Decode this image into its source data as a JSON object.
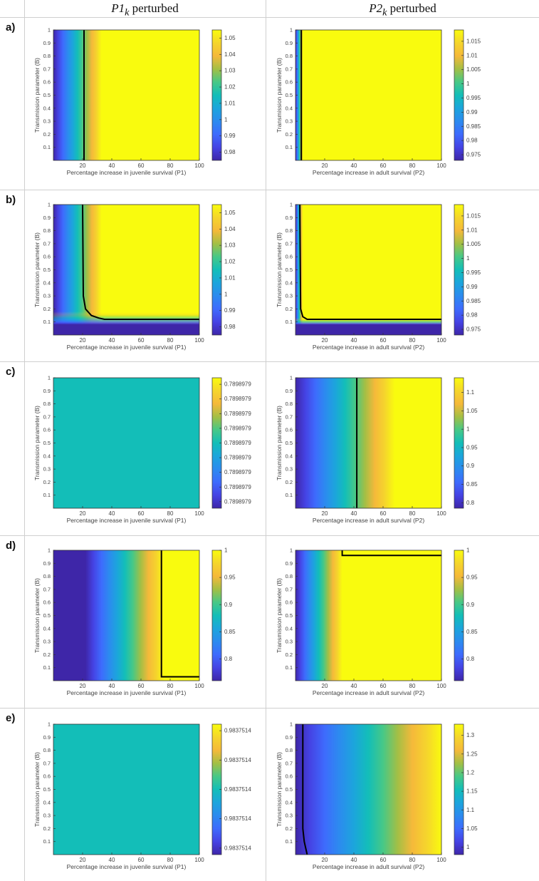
{
  "headers": {
    "col1": {
      "var": "P1",
      "sub": "k",
      "rest": " perturbed"
    },
    "col2": {
      "var": "P2",
      "sub": "k",
      "rest": " perturbed"
    }
  },
  "row_labels": [
    "a)",
    "b)",
    "c)",
    "d)",
    "e)"
  ],
  "colors": {
    "low": "#3e26a8",
    "mid": "#13beb8",
    "high": "#f9fb0e",
    "grid": "#cfcfcf"
  },
  "chart_data": [
    {
      "id": "a1",
      "type": "heatmap",
      "row": 0,
      "col": 0,
      "xlabel": "Percentage increase in juvenile survival (P1)",
      "ylabel": "Transmission parameter (B)",
      "xlim": [
        0,
        100
      ],
      "ylim": [
        0,
        1
      ],
      "xticks": [
        20,
        40,
        60,
        80,
        100
      ],
      "yticks": [
        0.1,
        0.2,
        0.3,
        0.4,
        0.5,
        0.6,
        0.7,
        0.8,
        0.9,
        1
      ],
      "colorbar": {
        "min": 0.975,
        "max": 1.055,
        "ticks": [
          "0.98",
          "0.99",
          "1",
          "1.01",
          "1.02",
          "1.03",
          "1.04",
          "1.05"
        ],
        "values": [
          0.98,
          0.99,
          1,
          1.01,
          1.02,
          1.03,
          1.04,
          1.05
        ]
      },
      "field": {
        "kind": "x_ramp",
        "start": 0,
        "end": 33
      },
      "contour": [
        [
          21,
          0
        ],
        [
          21,
          1
        ]
      ]
    },
    {
      "id": "a2",
      "type": "heatmap",
      "row": 0,
      "col": 1,
      "xlabel": "Percentage increase in adult survival (P2)",
      "ylabel": "Transmission parameter (B)",
      "xlim": [
        0,
        100
      ],
      "ylim": [
        0,
        1
      ],
      "xticks": [
        20,
        40,
        60,
        80,
        100
      ],
      "yticks": [
        0.1,
        0.2,
        0.3,
        0.4,
        0.5,
        0.6,
        0.7,
        0.8,
        0.9,
        1
      ],
      "colorbar": {
        "min": 0.973,
        "max": 1.019,
        "ticks": [
          "0.975",
          "0.98",
          "0.985",
          "0.99",
          "0.995",
          "1",
          "1.005",
          "1.01",
          "1.015"
        ],
        "values": [
          0.975,
          0.98,
          0.985,
          0.99,
          0.995,
          1,
          1.005,
          1.01,
          1.015
        ]
      },
      "field": {
        "kind": "x_ramp",
        "start": 0,
        "end": 5
      },
      "contour": [
        [
          4,
          0
        ],
        [
          4,
          1
        ]
      ]
    },
    {
      "id": "b1",
      "type": "heatmap",
      "row": 1,
      "col": 0,
      "xlabel": "Percentage increase in juvenile survival (P1)",
      "ylabel": "Transmission parameter (B)",
      "xlim": [
        0,
        100
      ],
      "ylim": [
        0,
        1
      ],
      "xticks": [
        20,
        40,
        60,
        80,
        100
      ],
      "yticks": [
        0.1,
        0.2,
        0.3,
        0.4,
        0.5,
        0.6,
        0.7,
        0.8,
        0.9,
        1
      ],
      "colorbar": {
        "min": 0.975,
        "max": 1.055,
        "ticks": [
          "0.98",
          "0.99",
          "1",
          "1.01",
          "1.02",
          "1.03",
          "1.04",
          "1.05"
        ],
        "values": [
          0.98,
          0.99,
          1,
          1.01,
          1.02,
          1.03,
          1.04,
          1.05
        ]
      },
      "field": {
        "kind": "corner",
        "xstart": 0,
        "xend": 33,
        "ystart": 0.08,
        "yend": 0.18
      },
      "contour": [
        [
          20,
          1
        ],
        [
          20.5,
          0.3
        ],
        [
          22,
          0.2
        ],
        [
          26,
          0.15
        ],
        [
          31,
          0.13
        ],
        [
          35,
          0.12
        ],
        [
          100,
          0.12
        ]
      ]
    },
    {
      "id": "b2",
      "type": "heatmap",
      "row": 1,
      "col": 1,
      "xlabel": "Percentage increase in adult survival (P2)",
      "ylabel": "Transmission parameter (B)",
      "xlim": [
        0,
        100
      ],
      "ylim": [
        0,
        1
      ],
      "xticks": [
        20,
        40,
        60,
        80,
        100
      ],
      "yticks": [
        0.1,
        0.2,
        0.3,
        0.4,
        0.5,
        0.6,
        0.7,
        0.8,
        0.9,
        1
      ],
      "colorbar": {
        "min": 0.973,
        "max": 1.019,
        "ticks": [
          "0.975",
          "0.98",
          "0.985",
          "0.99",
          "0.995",
          "1",
          "1.005",
          "1.01",
          "1.015"
        ],
        "values": [
          0.975,
          0.98,
          0.985,
          0.99,
          0.995,
          1,
          1.005,
          1.01,
          1.015
        ]
      },
      "field": {
        "kind": "corner",
        "xstart": 0,
        "xend": 5,
        "ystart": 0.08,
        "yend": 0.13
      },
      "contour": [
        [
          3,
          1
        ],
        [
          3.5,
          0.2
        ],
        [
          5,
          0.14
        ],
        [
          8,
          0.12
        ],
        [
          100,
          0.12
        ]
      ]
    },
    {
      "id": "c1",
      "type": "heatmap",
      "row": 2,
      "col": 0,
      "xlabel": "Percentage increase in juvenile survival (P1)",
      "ylabel": "Transmission parameter (B)",
      "xlim": [
        0,
        100
      ],
      "ylim": [
        0,
        1
      ],
      "xticks": [
        20,
        40,
        60,
        80,
        100
      ],
      "yticks": [
        0.1,
        0.2,
        0.3,
        0.4,
        0.5,
        0.6,
        0.7,
        0.8,
        0.9,
        1
      ],
      "colorbar": {
        "min": 0.0,
        "max": 1.0,
        "ticks": [
          "0.7898979",
          "0.7898979",
          "0.7898979",
          "0.7898979",
          "0.7898979",
          "0.7898979",
          "0.7898979",
          "0.7898979",
          "0.7898979"
        ],
        "values": [
          0.05,
          0.1625,
          0.275,
          0.3875,
          0.5,
          0.6125,
          0.725,
          0.8375,
          0.95
        ]
      },
      "field": {
        "kind": "constant",
        "value": 0.5
      },
      "contour": []
    },
    {
      "id": "c2",
      "type": "heatmap",
      "row": 2,
      "col": 1,
      "xlabel": "Percentage increase in adult survival (P2)",
      "ylabel": "Transmission parameter (B)",
      "xlim": [
        0,
        100
      ],
      "ylim": [
        0,
        1
      ],
      "xticks": [
        20,
        40,
        60,
        80,
        100
      ],
      "yticks": [
        0.1,
        0.2,
        0.3,
        0.4,
        0.5,
        0.6,
        0.7,
        0.8,
        0.9,
        1
      ],
      "colorbar": {
        "min": 0.785,
        "max": 1.14,
        "ticks": [
          "0.8",
          "0.85",
          "0.9",
          "0.95",
          "1",
          "1.05",
          "1.1"
        ],
        "values": [
          0.8,
          0.85,
          0.9,
          0.95,
          1,
          1.05,
          1.1
        ]
      },
      "field": {
        "kind": "x_ramp",
        "start": 0,
        "end": 68
      },
      "contour": [
        [
          42,
          0
        ],
        [
          42,
          1
        ]
      ]
    },
    {
      "id": "d1",
      "type": "heatmap",
      "row": 3,
      "col": 0,
      "xlabel": "Percentage increase in juvenile survival (P1)",
      "ylabel": "Transmission parameter (B)",
      "xlim": [
        0,
        100
      ],
      "ylim": [
        0,
        1
      ],
      "xticks": [
        20,
        40,
        60,
        80,
        100
      ],
      "yticks": [
        0.1,
        0.2,
        0.3,
        0.4,
        0.5,
        0.6,
        0.7,
        0.8,
        0.9,
        1
      ],
      "colorbar": {
        "min": 0.76,
        "max": 1.0,
        "ticks": [
          "0.8",
          "0.85",
          "0.9",
          "0.95",
          "1"
        ],
        "values": [
          0.8,
          0.85,
          0.9,
          0.95,
          1
        ]
      },
      "field": {
        "kind": "x_ramp",
        "start": 22,
        "end": 76
      },
      "contour": [
        [
          74,
          1
        ],
        [
          74,
          0.03
        ],
        [
          100,
          0.03
        ]
      ]
    },
    {
      "id": "d2",
      "type": "heatmap",
      "row": 3,
      "col": 1,
      "xlabel": "Percentage increase in adult survival (P2)",
      "ylabel": "Transmission parameter (B)",
      "xlim": [
        0,
        100
      ],
      "ylim": [
        0,
        1
      ],
      "xticks": [
        20,
        40,
        60,
        80,
        100
      ],
      "yticks": [
        0.1,
        0.2,
        0.3,
        0.4,
        0.5,
        0.6,
        0.7,
        0.8,
        0.9,
        1
      ],
      "colorbar": {
        "min": 0.76,
        "max": 1.0,
        "ticks": [
          "0.8",
          "0.85",
          "0.9",
          "0.95",
          "1"
        ],
        "values": [
          0.8,
          0.85,
          0.9,
          0.95,
          1
        ]
      },
      "field": {
        "kind": "x_ramp",
        "start": 0,
        "end": 32
      },
      "contour": [
        [
          32,
          1
        ],
        [
          32,
          0.96
        ],
        [
          100,
          0.96
        ]
      ]
    },
    {
      "id": "e1",
      "type": "heatmap",
      "row": 4,
      "col": 0,
      "xlabel": "Percentage increase in juvenile survival (P1)",
      "ylabel": "Transmission parameter (B)",
      "xlim": [
        0,
        100
      ],
      "ylim": [
        0,
        1
      ],
      "xticks": [
        20,
        40,
        60,
        80,
        100
      ],
      "yticks": [
        0.1,
        0.2,
        0.3,
        0.4,
        0.5,
        0.6,
        0.7,
        0.8,
        0.9,
        1
      ],
      "colorbar": {
        "min": 0.0,
        "max": 1.0,
        "ticks": [
          "0.9837514",
          "0.9837514",
          "0.9837514",
          "0.9837514",
          "0.9837514"
        ],
        "values": [
          0.05,
          0.275,
          0.5,
          0.725,
          0.95
        ]
      },
      "field": {
        "kind": "constant",
        "value": 0.5
      },
      "contour": []
    },
    {
      "id": "e2",
      "type": "heatmap",
      "row": 4,
      "col": 1,
      "xlabel": "Percentage increase in adult survival (P2)",
      "ylabel": "Transmission parameter (B)",
      "xlim": [
        0,
        100
      ],
      "ylim": [
        0,
        1
      ],
      "xticks": [
        20,
        40,
        60,
        80,
        100
      ],
      "yticks": [
        0.1,
        0.2,
        0.3,
        0.4,
        0.5,
        0.6,
        0.7,
        0.8,
        0.9,
        1
      ],
      "colorbar": {
        "min": 0.98,
        "max": 1.33,
        "ticks": [
          "1",
          "1.05",
          "1.1",
          "1.15",
          "1.2",
          "1.25",
          "1.3"
        ],
        "values": [
          1,
          1.05,
          1.1,
          1.15,
          1.2,
          1.25,
          1.3
        ]
      },
      "field": {
        "kind": "x_ramp",
        "start": 0,
        "end": 100
      },
      "contour": [
        [
          5,
          1
        ],
        [
          5,
          0.2
        ],
        [
          6,
          0.1
        ],
        [
          8,
          0
        ]
      ]
    }
  ]
}
